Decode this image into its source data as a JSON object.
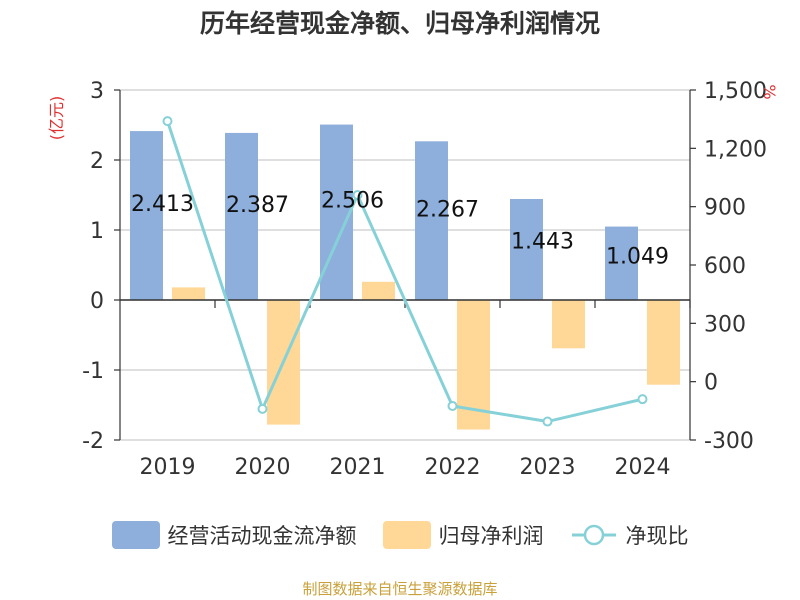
{
  "title": "历年经营现金净额、归母净利润情况",
  "source": "制图数据来自恒生聚源数据库",
  "legend": {
    "items": [
      {
        "label": "经营活动现金流净额",
        "color": "#8eaedc",
        "kind": "bar"
      },
      {
        "label": "归母净利润",
        "color": "#ffd796",
        "kind": "bar"
      },
      {
        "label": "净现比",
        "color": "#86d1d8",
        "kind": "line"
      }
    ]
  },
  "colors": {
    "bar1": "#8eaedc",
    "bar2": "#ffd796",
    "line": "#86d1d8",
    "axis_unit": "#e03131",
    "grid": "#cccccc",
    "text": "#333333"
  },
  "chart_data": {
    "type": "bar",
    "categories": [
      "2019",
      "2020",
      "2021",
      "2022",
      "2023",
      "2024"
    ],
    "series": [
      {
        "name": "经营活动现金流净额",
        "axis": "left",
        "values": [
          2.413,
          2.387,
          2.506,
          2.267,
          1.443,
          1.049
        ],
        "data_labels": [
          "2.413",
          "2.387",
          "2.506",
          "2.267",
          "1.443",
          "1.049"
        ]
      },
      {
        "name": "归母净利润",
        "axis": "left",
        "values": [
          0.18,
          -1.78,
          0.26,
          -1.85,
          -0.69,
          -1.21
        ]
      },
      {
        "name": "净现比",
        "axis": "right",
        "type": "line",
        "values": [
          1340,
          -140,
          960,
          -125,
          -205,
          -90
        ]
      }
    ],
    "y_left": {
      "unit": "(亿元)",
      "ylim": [
        -2,
        3
      ],
      "ticks": [
        "3",
        "2",
        "1",
        "0",
        "-1",
        "-2"
      ]
    },
    "y_right": {
      "unit": "%",
      "ylim": [
        -300,
        1500
      ],
      "ticks": [
        "1,500",
        "1,200",
        "900",
        "600",
        "300",
        "0",
        "-300"
      ]
    },
    "grid": true,
    "legend_position": "bottom"
  }
}
